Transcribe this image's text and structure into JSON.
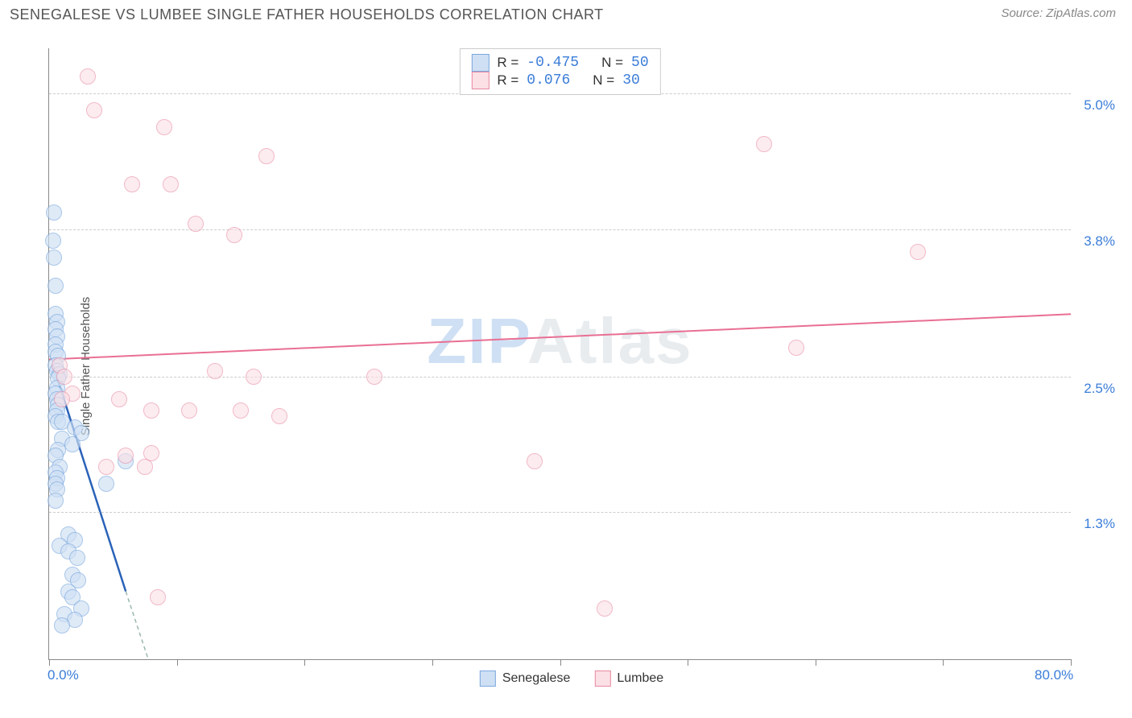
{
  "header": {
    "title": "SENEGALESE VS LUMBEE SINGLE FATHER HOUSEHOLDS CORRELATION CHART",
    "source": "Source: ZipAtlas.com"
  },
  "chart": {
    "type": "scatter",
    "y_axis_label": "Single Father Households",
    "watermark": {
      "part1": "ZIP",
      "part2": "Atlas"
    },
    "background_color": "#ffffff",
    "grid_color": "#cccccc",
    "axis_color": "#888888",
    "label_color": "#3b7dd8",
    "xlim": [
      0,
      80
    ],
    "ylim": [
      0,
      5.4
    ],
    "x_ticks": [
      0,
      10,
      20,
      30,
      40,
      50,
      60,
      70,
      80
    ],
    "x_tick_labels": {
      "0": "0.0%",
      "80": "80.0%"
    },
    "y_gridlines": [
      1.3,
      2.5,
      3.8,
      5.0
    ],
    "y_tick_labels": [
      "1.3%",
      "2.5%",
      "3.8%",
      "5.0%"
    ],
    "marker_radius": 10,
    "marker_stroke_width": 1.5,
    "series": [
      {
        "name": "Senegalese",
        "fill": "#cfe0f4",
        "stroke": "#7aa8de",
        "fill_opacity": 0.65,
        "points": [
          [
            0.4,
            3.95
          ],
          [
            0.3,
            3.7
          ],
          [
            0.4,
            3.55
          ],
          [
            0.5,
            3.3
          ],
          [
            0.5,
            3.05
          ],
          [
            0.6,
            2.98
          ],
          [
            0.5,
            2.92
          ],
          [
            0.6,
            2.85
          ],
          [
            0.5,
            2.78
          ],
          [
            0.5,
            2.72
          ],
          [
            0.7,
            2.68
          ],
          [
            0.5,
            2.6
          ],
          [
            0.6,
            2.55
          ],
          [
            0.8,
            2.52
          ],
          [
            0.7,
            2.48
          ],
          [
            0.6,
            2.4
          ],
          [
            0.5,
            2.35
          ],
          [
            0.6,
            2.3
          ],
          [
            0.7,
            2.25
          ],
          [
            0.6,
            2.2
          ],
          [
            0.5,
            2.15
          ],
          [
            0.7,
            2.1
          ],
          [
            1.0,
            2.1
          ],
          [
            2.0,
            2.05
          ],
          [
            2.5,
            2.0
          ],
          [
            1.0,
            1.95
          ],
          [
            1.8,
            1.9
          ],
          [
            0.7,
            1.85
          ],
          [
            0.5,
            1.8
          ],
          [
            6.0,
            1.75
          ],
          [
            0.8,
            1.7
          ],
          [
            0.5,
            1.65
          ],
          [
            0.6,
            1.6
          ],
          [
            0.5,
            1.55
          ],
          [
            4.5,
            1.55
          ],
          [
            0.6,
            1.5
          ],
          [
            0.5,
            1.4
          ],
          [
            1.5,
            1.1
          ],
          [
            2.0,
            1.05
          ],
          [
            0.8,
            1.0
          ],
          [
            1.5,
            0.95
          ],
          [
            2.2,
            0.9
          ],
          [
            1.8,
            0.75
          ],
          [
            2.3,
            0.7
          ],
          [
            1.5,
            0.6
          ],
          [
            1.8,
            0.55
          ],
          [
            2.5,
            0.45
          ],
          [
            1.2,
            0.4
          ],
          [
            2.0,
            0.35
          ],
          [
            1.0,
            0.3
          ]
        ],
        "trend": {
          "color": "#2a62b8",
          "width": 2.5,
          "dashed_color": "#9bb8ae",
          "x1": 0.3,
          "y1": 2.6,
          "x2": 6.0,
          "y2": 0.6,
          "dx1": 6.0,
          "dy1": 0.6,
          "dx2": 8.5,
          "dy2": -0.25
        }
      },
      {
        "name": "Lumbee",
        "fill": "#fbe0e6",
        "stroke": "#e88aa2",
        "fill_opacity": 0.6,
        "points": [
          [
            3.0,
            5.15
          ],
          [
            3.5,
            4.85
          ],
          [
            9.0,
            4.7
          ],
          [
            17.0,
            4.45
          ],
          [
            56.0,
            4.55
          ],
          [
            6.5,
            4.2
          ],
          [
            9.5,
            4.2
          ],
          [
            11.5,
            3.85
          ],
          [
            14.5,
            3.75
          ],
          [
            68.0,
            3.6
          ],
          [
            58.5,
            2.75
          ],
          [
            0.8,
            2.6
          ],
          [
            1.2,
            2.5
          ],
          [
            13.0,
            2.55
          ],
          [
            16.0,
            2.5
          ],
          [
            25.5,
            2.5
          ],
          [
            1.8,
            2.35
          ],
          [
            1.0,
            2.3
          ],
          [
            5.5,
            2.3
          ],
          [
            8.0,
            2.2
          ],
          [
            11.0,
            2.2
          ],
          [
            15.0,
            2.2
          ],
          [
            18.0,
            2.15
          ],
          [
            6.0,
            1.8
          ],
          [
            8.0,
            1.82
          ],
          [
            38.0,
            1.75
          ],
          [
            4.5,
            1.7
          ],
          [
            7.5,
            1.7
          ],
          [
            8.5,
            0.55
          ],
          [
            43.5,
            0.45
          ]
        ],
        "trend": {
          "color": "#e96f93",
          "width": 2,
          "x1": 0,
          "y1": 2.65,
          "x2": 80,
          "y2": 3.05
        }
      }
    ],
    "legend_top": [
      {
        "swatch_fill": "#cfe0f4",
        "swatch_stroke": "#7aa8de",
        "r_label": "R =",
        "r_value": "-0.475",
        "n_label": "N =",
        "n_value": "50"
      },
      {
        "swatch_fill": "#fbe0e6",
        "swatch_stroke": "#e88aa2",
        "r_label": "R =",
        "r_value": " 0.076",
        "n_label": "N =",
        "n_value": "30"
      }
    ],
    "legend_bottom": [
      {
        "swatch_fill": "#cfe0f4",
        "swatch_stroke": "#7aa8de",
        "label": "Senegalese"
      },
      {
        "swatch_fill": "#fbe0e6",
        "swatch_stroke": "#e88aa2",
        "label": "Lumbee"
      }
    ]
  }
}
